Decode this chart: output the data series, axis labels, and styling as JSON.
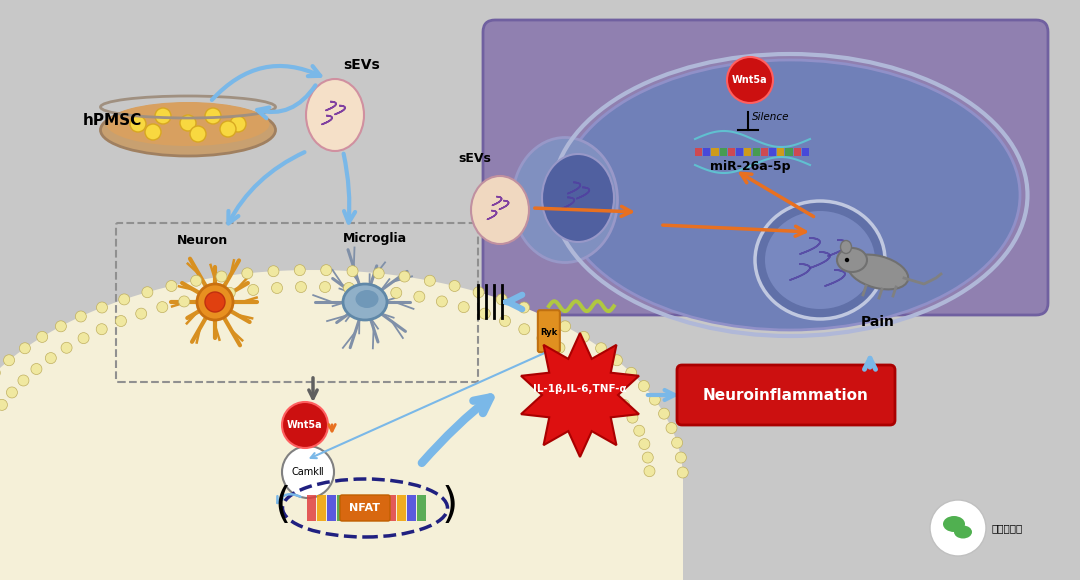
{
  "colors": {
    "bg_color": "#c8c8c8",
    "panel_bg": "#9080b0",
    "panel_border": "#7060a0",
    "arrow_blue": "#7ab8e8",
    "arrow_orange": "#e87020",
    "arrow_gray": "#606060",
    "wnt5a_red": "#cc1010",
    "cell_fill": "#f5f0d8",
    "nfat_orange": "#d86810",
    "neuroinflam_red": "#cc1010"
  },
  "labels": {
    "hPMSC": "hPMSC",
    "sEVs": "sEVs",
    "sEVs2": "sEVs",
    "Neuron": "Neuron",
    "Microglia": "Microglia",
    "miR": "miR-26a-5p",
    "Wnt5a1": "Wnt5a",
    "Wnt5a2": "Wnt5a",
    "Silence": "Silence",
    "CamkII": "CamkⅡ",
    "NFAT": "NFAT",
    "Neuroinflammation": "Neuroinflammation",
    "IL1b": "IL-1β,IL-6,TNF-α",
    "Pain": "Pain",
    "Ryk": "Ryk",
    "wechat": "外泌体之家"
  }
}
